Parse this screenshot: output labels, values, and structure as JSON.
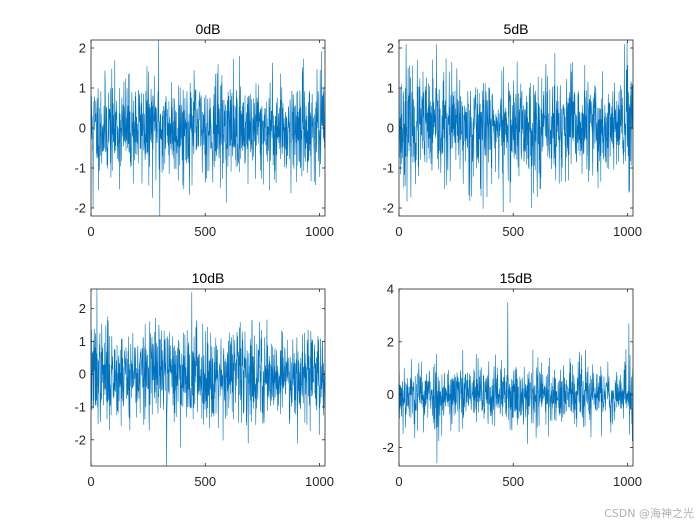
{
  "figure": {
    "watermark": "CSDN @海神之光",
    "colors": {
      "line": "#0072BD",
      "axes": "#262626",
      "background": "#ffffff"
    }
  },
  "chart_data": [
    {
      "type": "line",
      "title": "0dB",
      "xlim": [
        0,
        1024
      ],
      "ylim": [
        -2.2,
        2.2
      ],
      "xticks": [
        0,
        500,
        1000
      ],
      "yticks": [
        -2,
        -1,
        0,
        1,
        2
      ],
      "n_points": 1024,
      "noise_sd": 0.62,
      "seed": 11,
      "spikes": [
        {
          "x": 295,
          "y": 2.2
        },
        {
          "x": 300,
          "y": -2.2
        },
        {
          "x": 8,
          "y": -2.0
        }
      ]
    },
    {
      "type": "line",
      "title": "5dB",
      "xlim": [
        0,
        1024
      ],
      "ylim": [
        -2.2,
        2.2
      ],
      "xticks": [
        0,
        500,
        1000
      ],
      "yticks": [
        -2,
        -1,
        0,
        1,
        2
      ],
      "n_points": 1024,
      "noise_sd": 0.68,
      "seed": 23,
      "spikes": [
        {
          "x": 30,
          "y": 2.1
        },
        {
          "x": 455,
          "y": -2.1
        },
        {
          "x": 985,
          "y": 2.1
        }
      ]
    },
    {
      "type": "line",
      "title": "10dB",
      "xlim": [
        0,
        1024
      ],
      "ylim": [
        -2.8,
        2.6
      ],
      "xticks": [
        0,
        500,
        1000
      ],
      "yticks": [
        -2,
        -1,
        0,
        1,
        2
      ],
      "n_points": 1024,
      "noise_sd": 0.72,
      "seed": 37,
      "spikes": [
        {
          "x": 25,
          "y": 2.6
        },
        {
          "x": 440,
          "y": 2.5
        },
        {
          "x": 330,
          "y": -2.8
        }
      ]
    },
    {
      "type": "line",
      "title": "15dB",
      "xlim": [
        0,
        1024
      ],
      "ylim": [
        -2.7,
        4
      ],
      "xticks": [
        0,
        500,
        1000
      ],
      "yticks": [
        -2,
        0,
        2,
        4
      ],
      "n_points": 1024,
      "noise_sd": 0.62,
      "seed": 53,
      "spikes": [
        {
          "x": 475,
          "y": 3.5
        },
        {
          "x": 165,
          "y": -2.6
        },
        {
          "x": 1005,
          "y": 2.7
        }
      ]
    }
  ]
}
